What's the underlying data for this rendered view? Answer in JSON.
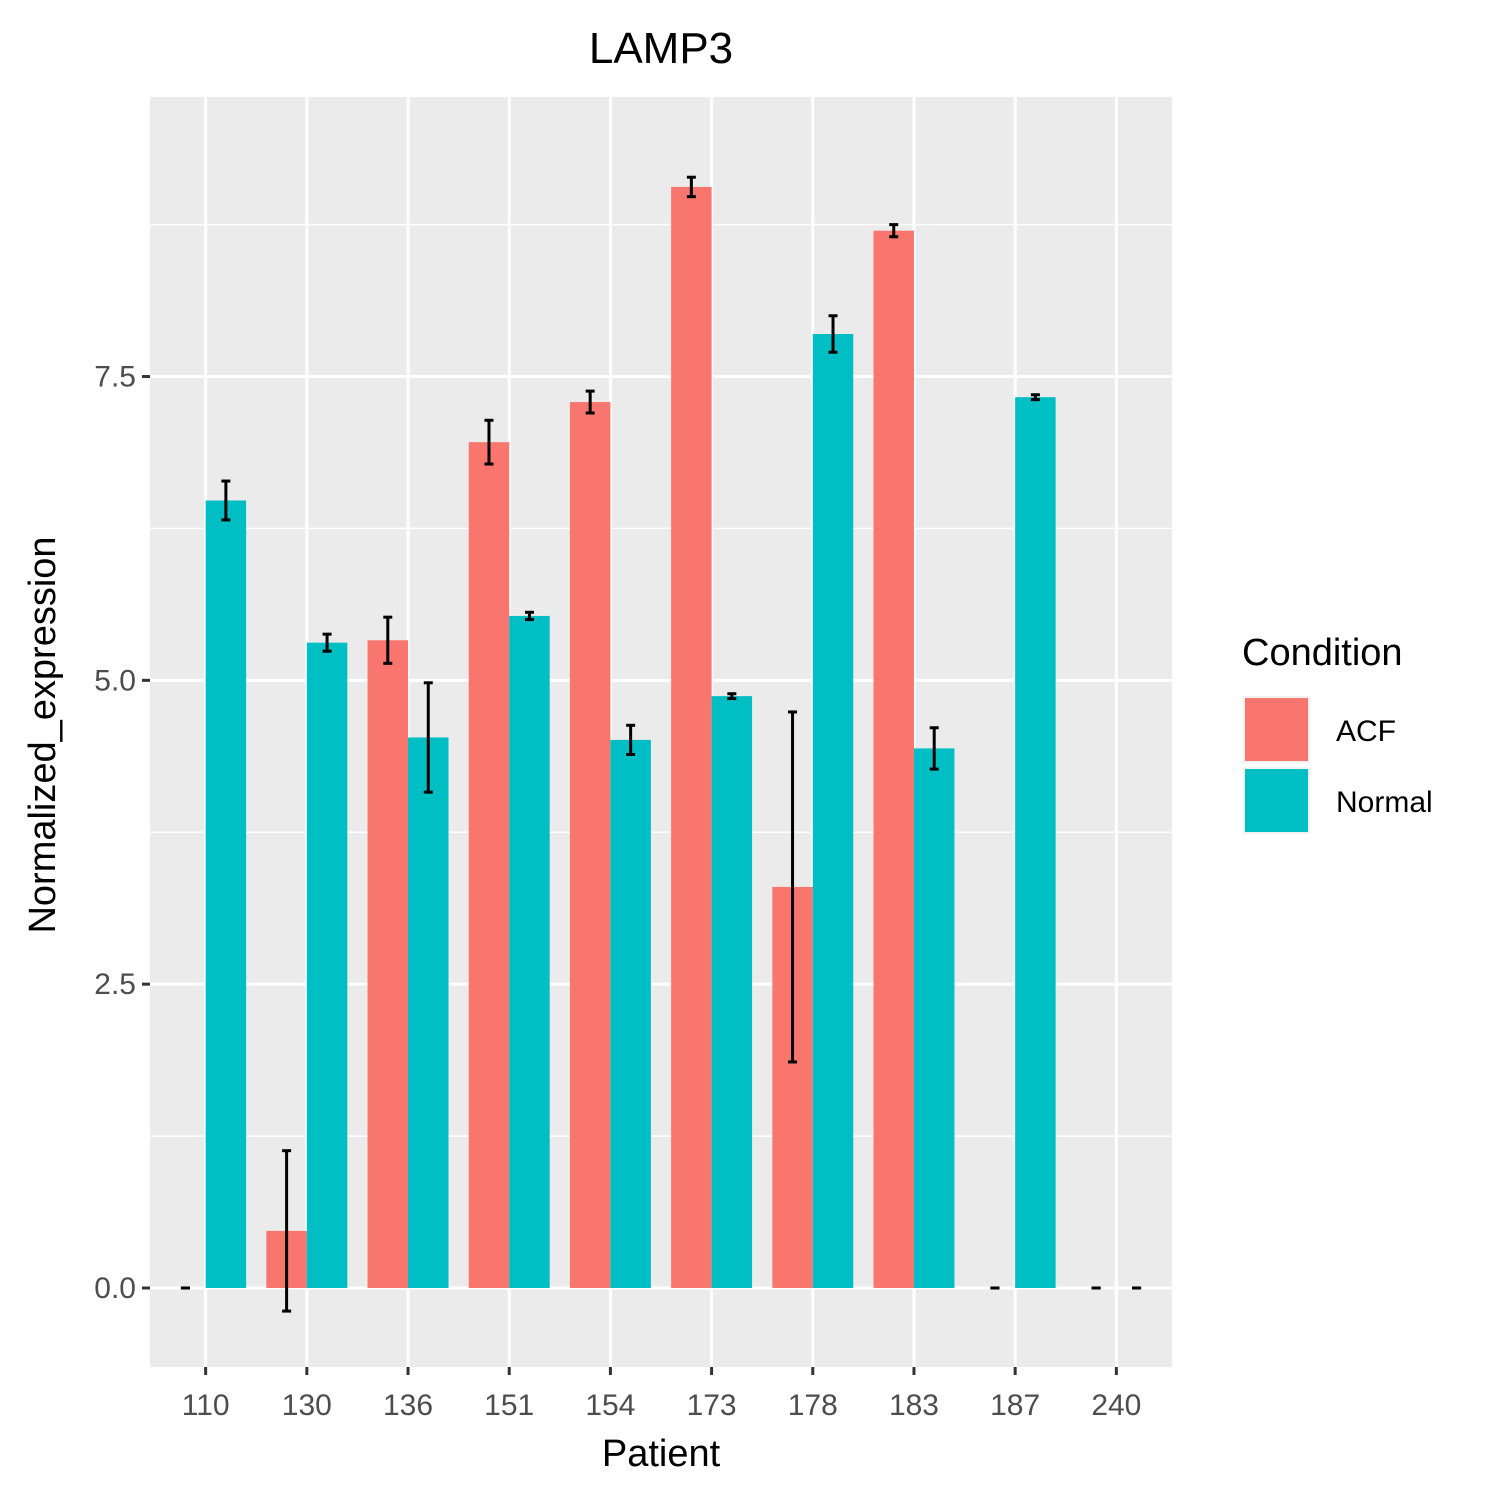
{
  "chart_data": {
    "type": "bar",
    "title": "LAMP3",
    "xlabel": "Patient",
    "ylabel": "Normalized_expression",
    "categories": [
      "110",
      "130",
      "136",
      "151",
      "154",
      "173",
      "178",
      "183",
      "187",
      "240"
    ],
    "ylim": [
      -0.65,
      9.8
    ],
    "yticks": [
      0.0,
      2.5,
      5.0,
      7.5
    ],
    "ytick_labels": [
      "0.0",
      "2.5",
      "5.0",
      "7.5"
    ],
    "grid": true,
    "legend": {
      "title": "Condition",
      "position": "right",
      "entries": [
        "ACF",
        "Normal"
      ]
    },
    "series": [
      {
        "name": "ACF",
        "color": "#F8766D",
        "values": [
          0.0,
          0.47,
          5.33,
          6.96,
          7.29,
          9.06,
          3.3,
          8.7,
          0.0,
          0.0
        ],
        "error_low": [
          0.0,
          -0.19,
          5.14,
          6.78,
          7.2,
          8.98,
          1.86,
          8.65,
          0.0,
          0.0
        ],
        "error_high": [
          0.0,
          1.13,
          5.52,
          7.14,
          7.38,
          9.14,
          4.74,
          8.75,
          0.0,
          0.0
        ]
      },
      {
        "name": "Normal",
        "color": "#00BFC4",
        "values": [
          6.48,
          5.31,
          4.53,
          5.53,
          4.51,
          4.87,
          7.85,
          4.44,
          7.33,
          0.0
        ],
        "error_low": [
          6.32,
          5.24,
          4.08,
          5.5,
          4.39,
          4.85,
          7.7,
          4.27,
          7.31,
          0.0
        ],
        "error_high": [
          6.64,
          5.38,
          4.98,
          5.56,
          4.63,
          4.89,
          8.0,
          4.61,
          7.35,
          0.0
        ]
      }
    ]
  }
}
